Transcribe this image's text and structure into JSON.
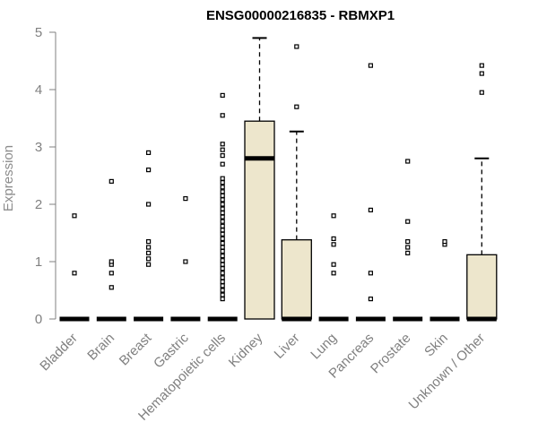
{
  "chart_data": {
    "type": "boxplot",
    "title": "ENSG00000216835 - RBMXP1",
    "xlabel": "",
    "ylabel": "Expression",
    "ylim": [
      0,
      5
    ],
    "yticks": [
      0,
      1,
      2,
      3,
      4,
      5
    ],
    "grid": false,
    "box_fill": "#ede6cc",
    "box_stroke": "#000000",
    "axis_color": "#808080",
    "categories": [
      "Bladder",
      "Brain",
      "Breast",
      "Gastric",
      "Hematopoietic cells",
      "Kidney",
      "Liver",
      "Lung",
      "Pancreas",
      "Prostate",
      "Skin",
      "Unknown / Other"
    ],
    "boxes": [
      {
        "q1": 0,
        "median": 0,
        "q3": 0,
        "whisker_low": 0,
        "whisker_high": 0,
        "outliers": [
          0.8,
          1.8
        ]
      },
      {
        "q1": 0,
        "median": 0,
        "q3": 0,
        "whisker_low": 0,
        "whisker_high": 0,
        "outliers": [
          0.55,
          0.8,
          0.95,
          1.0,
          2.4
        ]
      },
      {
        "q1": 0,
        "median": 0,
        "q3": 0,
        "whisker_low": 0,
        "whisker_high": 0,
        "outliers": [
          0.95,
          1.05,
          1.15,
          1.25,
          1.35,
          2.0,
          2.6,
          2.9
        ]
      },
      {
        "q1": 0,
        "median": 0,
        "q3": 0,
        "whisker_low": 0,
        "whisker_high": 0,
        "outliers": [
          1.0,
          2.1
        ]
      },
      {
        "q1": 0,
        "median": 0,
        "q3": 0,
        "whisker_low": 0,
        "whisker_high": 0,
        "outliers": [
          0.35,
          0.42,
          0.5,
          0.58,
          0.65,
          0.72,
          0.8,
          0.88,
          0.95,
          1.02,
          1.1,
          1.18,
          1.25,
          1.32,
          1.4,
          1.48,
          1.55,
          1.62,
          1.7,
          1.78,
          1.85,
          1.92,
          2.0,
          2.08,
          2.15,
          2.22,
          2.3,
          2.38,
          2.45,
          2.7,
          2.85,
          2.95,
          3.05,
          3.55,
          3.9
        ]
      },
      {
        "q1": 0,
        "median": 2.8,
        "q3": 3.45,
        "whisker_low": 0,
        "whisker_high": 4.9,
        "outliers": []
      },
      {
        "q1": 0,
        "median": 0,
        "q3": 1.38,
        "whisker_low": 0,
        "whisker_high": 3.27,
        "outliers": [
          3.7,
          4.75
        ]
      },
      {
        "q1": 0,
        "median": 0,
        "q3": 0,
        "whisker_low": 0,
        "whisker_high": 0,
        "outliers": [
          0.8,
          0.95,
          1.3,
          1.4,
          1.8
        ]
      },
      {
        "q1": 0,
        "median": 0,
        "q3": 0,
        "whisker_low": 0,
        "whisker_high": 0,
        "outliers": [
          0.35,
          0.8,
          1.9,
          4.42
        ]
      },
      {
        "q1": 0,
        "median": 0,
        "q3": 0,
        "whisker_low": 0,
        "whisker_high": 0,
        "outliers": [
          1.15,
          1.25,
          1.35,
          1.7,
          2.75
        ]
      },
      {
        "q1": 0,
        "median": 0,
        "q3": 0,
        "whisker_low": 0,
        "whisker_high": 0,
        "outliers": [
          1.3,
          1.35
        ]
      },
      {
        "q1": 0,
        "median": 0,
        "q3": 1.12,
        "whisker_low": 0,
        "whisker_high": 2.8,
        "outliers": [
          3.95,
          4.28,
          4.42
        ]
      }
    ]
  }
}
